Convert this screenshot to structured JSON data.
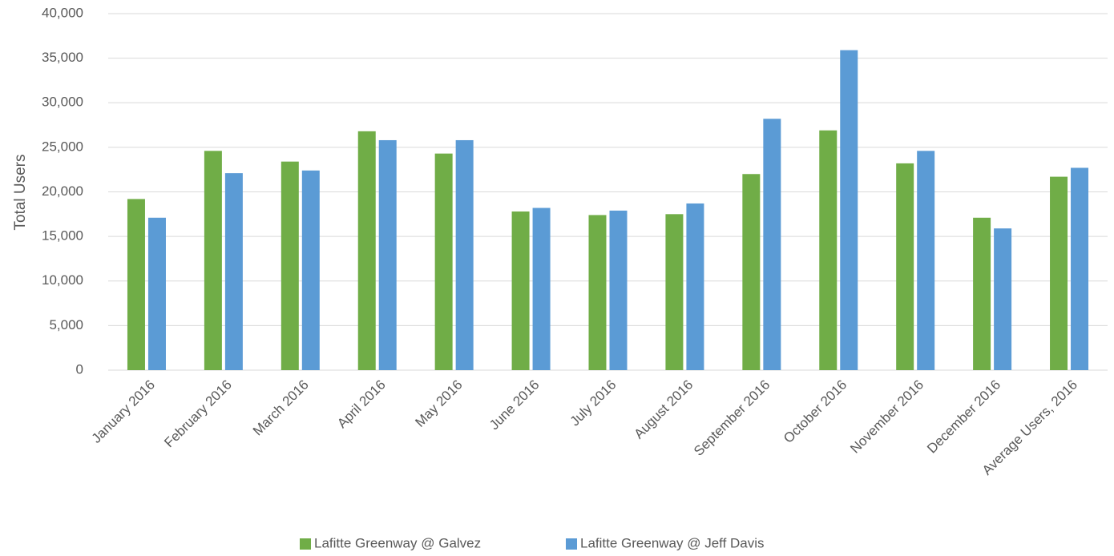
{
  "chart_data": {
    "type": "bar",
    "title": "",
    "xlabel": "",
    "ylabel": "Total Users",
    "ylim": [
      0,
      40000
    ],
    "yticks": [
      0,
      5000,
      10000,
      15000,
      20000,
      25000,
      30000,
      35000,
      40000
    ],
    "ytick_labels": [
      "0",
      "5,000",
      "10,000",
      "15,000",
      "20,000",
      "25,000",
      "30,000",
      "35,000",
      "40,000"
    ],
    "grid": true,
    "legend_position": "bottom",
    "categories": [
      "January 2016",
      "February 2016",
      "March 2016",
      "April 2016",
      "May 2016",
      "June 2016",
      "July 2016",
      "August 2016",
      "September 2016",
      "October 2016",
      "November 2016",
      "December 2016",
      "Average Users, 2016"
    ],
    "series": [
      {
        "name": "Lafitte Greenway @ Galvez",
        "color": "#70ad47",
        "values": [
          19200,
          24600,
          23400,
          26800,
          24300,
          17800,
          17400,
          17500,
          22000,
          26900,
          23200,
          17100,
          21700
        ]
      },
      {
        "name": "Lafitte Greenway @ Jeff Davis",
        "color": "#5b9bd5",
        "values": [
          17100,
          22100,
          22400,
          25800,
          25800,
          18200,
          17900,
          18700,
          28200,
          35900,
          24600,
          15900,
          22700
        ]
      }
    ]
  }
}
